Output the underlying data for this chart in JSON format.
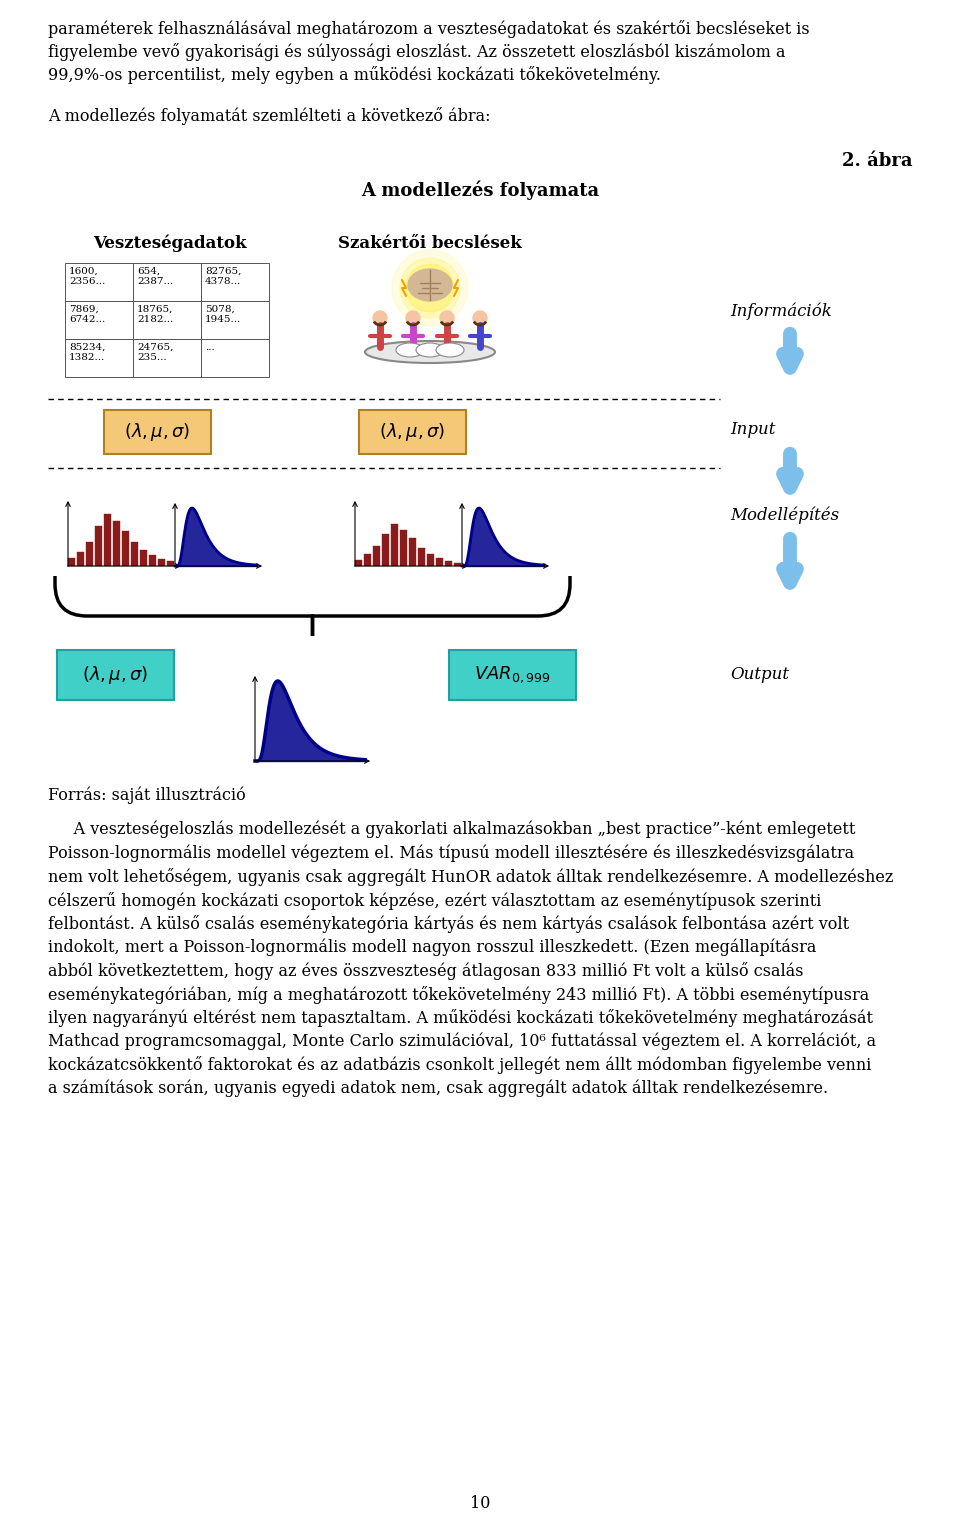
{
  "page_text_top": [
    "paraméterek felhasználásával meghatározom a veszteségadatokat és szakértői becsléseket is",
    "figyelembe vevő gyakorisági és súlyossági eloszlást. Az összetett eloszlásból kiszámolom a",
    "99,9%-os percentilist, mely egyben a működési kockázati tőkekövetelmény."
  ],
  "intro_text": "A modellezés folyamatát szemlélteti a következő ábra:",
  "figure_label": "2. ábra",
  "figure_title": "A modellezés folyamata",
  "col1_label": "Veszteségadatok",
  "col2_label": "Szakértői becslések",
  "col3_label_info": "Információk",
  "col3_label_input": "Input",
  "col3_label_model": "Modellépítés",
  "col3_label_output": "Output",
  "source_text": "Forrás: saját illusztráció",
  "paragraph1": "     A veszteségeloszlás modellezését a gyakorlati alkalmazásokban „best practice”-ként emlegetett Poisson-lognormális modellel végeztem el. Más típusú modell illesztésére és illeszkedésvizsgálatra nem volt lehetőségem, ugyanis csak aggregált HunOR adatok álltak rendelkezésemre. A modellezéshez célszerű homogén kockázati csoportok képzése, ezért választottam az eseménytípusok szerinti felbontást. A külső csalás eseménykategória kártyás és nem kártyás csalások felbontása azért volt indokolt, mert a Poisson-lognormális modell nagyon rosszul illeszkedett. (Ezen megállapításra abból következtettem, hogy az éves összveszteség átlagosan 833 millió Ft volt a külső csalás eseménykategóriában, míg a meghatározott tőkekövetelmény 243 millió Ft). A többi eseménytípusra ilyen nagyarányú eltérést nem tapasztaltam. A működési kockázati tőkekövetelmény meghatározását Mathcad programcsomaggal, Monte Carlo szimulációval, 10⁶ futtatással végeztem el. A korrelációt, a kockázatcsökkentő faktorokat és az adatbázis csonkolt jellegét nem állt módomban figyelembe venni a számítások során, ugyanis egyedi adatok nem, csak aggregált adatok álltak rendelkezésemre.",
  "page_number": "10",
  "bg_color": "#ffffff",
  "text_color": "#000000",
  "body_fontsize": 11.5,
  "title_fontsize": 13,
  "label_fontsize": 12
}
